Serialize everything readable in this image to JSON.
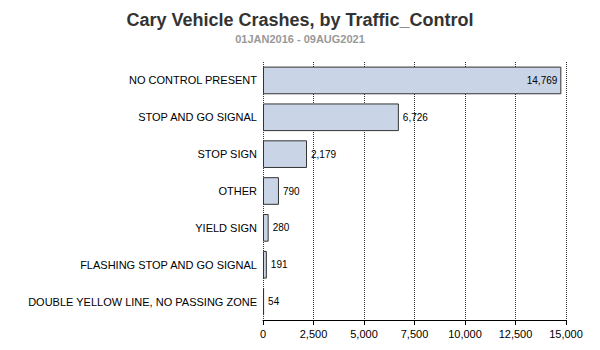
{
  "chart_data": {
    "type": "bar",
    "orientation": "horizontal",
    "title": "Cary Vehicle Crashes, by Traffic_Control",
    "subtitle": "01JAN2016 - 09AUG2021",
    "categories": [
      "NO CONTROL PRESENT",
      "STOP AND GO SIGNAL",
      "STOP SIGN",
      "OTHER",
      "YIELD SIGN",
      "FLASHING STOP AND GO SIGNAL",
      "DOUBLE YELLOW LINE, NO PASSING ZONE"
    ],
    "values": [
      14769,
      6726,
      2179,
      790,
      280,
      191,
      54
    ],
    "value_labels": [
      "14,769",
      "6,726",
      "2,179",
      "790",
      "280",
      "191",
      "54"
    ],
    "data_labels": true,
    "color": "#c9d5e7",
    "xlim": [
      0,
      15000
    ],
    "xticks": [
      0,
      {
        "value": 2500,
        "label": "2,500"
      },
      {
        "value": 5000,
        "label": "5,000"
      },
      {
        "value": 7500,
        "label": "7,500"
      },
      {
        "value": 10000,
        "label": "10,000"
      },
      {
        "value": 12500,
        "label": "12,500"
      },
      {
        "value": 15000,
        "label": "15,000"
      }
    ],
    "grid": true
  }
}
